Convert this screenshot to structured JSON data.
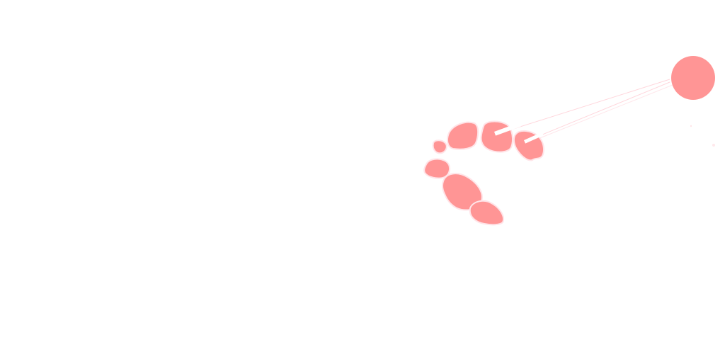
{
  "colors": {
    "background": "#ffffff",
    "blob_fill": "#ff9595",
    "blob_outline": "#ffe4e8",
    "line": "#ffd6dc",
    "highlight": "#ffffff"
  },
  "shapes": {
    "circle": {
      "icon": "circle-shape"
    },
    "blobs": [
      {
        "icon": "blob-shape"
      },
      {
        "icon": "blob-shape"
      },
      {
        "icon": "blob-shape"
      },
      {
        "icon": "blob-shape"
      },
      {
        "icon": "blob-shape"
      },
      {
        "icon": "blob-shape"
      },
      {
        "icon": "blob-shape"
      }
    ]
  }
}
